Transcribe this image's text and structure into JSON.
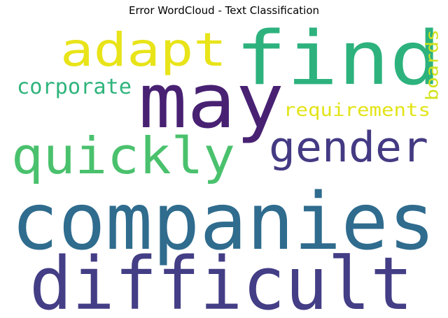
{
  "title": "Error WordCloud - Text Classification",
  "words": {
    "find": {
      "text": "find",
      "color": "#2db27d"
    },
    "adapt": {
      "text": "adapt",
      "color": "#e8e419"
    },
    "may": {
      "text": "may",
      "color": "#482173"
    },
    "corporate": {
      "text": "corporate",
      "color": "#2fb47c"
    },
    "boards": {
      "text": "boards",
      "color": "#d2e21b"
    },
    "requirements": {
      "text": "requirements",
      "color": "#e2e418"
    },
    "gender": {
      "text": "gender",
      "color": "#443a83"
    },
    "quickly": {
      "text": "quickly",
      "color": "#4ac16d"
    },
    "companies": {
      "text": "companies",
      "color": "#2f6c8e"
    },
    "difficult": {
      "text": "difficult",
      "color": "#433e85"
    }
  }
}
